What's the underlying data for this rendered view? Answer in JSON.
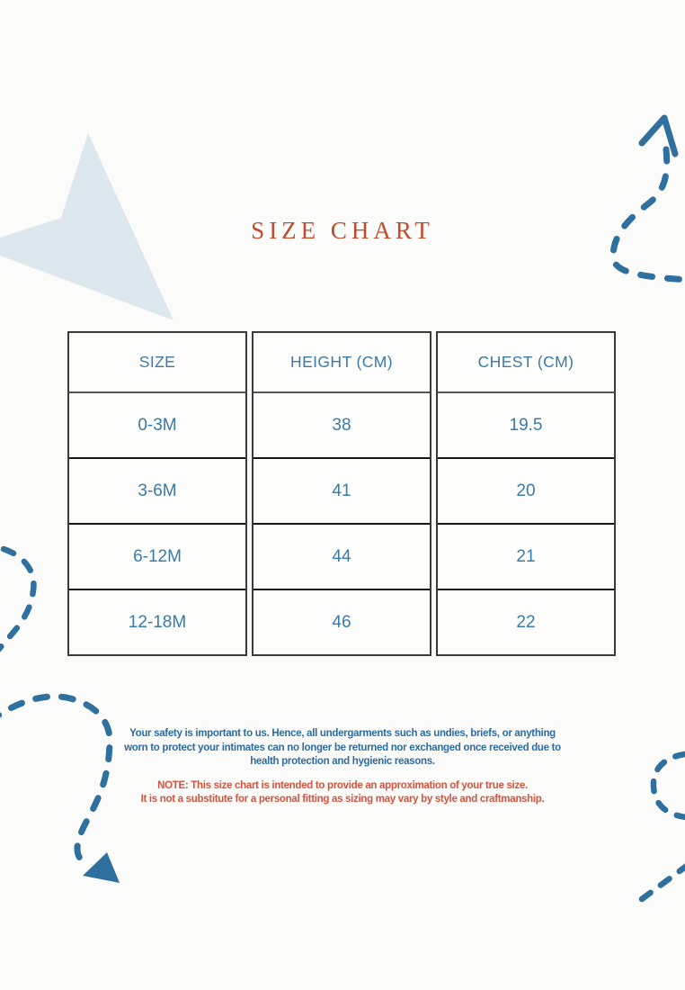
{
  "title": "SIZE CHART",
  "size_table": {
    "headers": [
      "SIZE",
      "HEIGHT (CM)",
      "CHEST (CM)"
    ],
    "column_keys": [
      "size",
      "height_cm",
      "chest_cm"
    ],
    "rows": [
      {
        "size": "0-3M",
        "height_cm": "38",
        "chest_cm": "19.5"
      },
      {
        "size": "3-6M",
        "height_cm": "41",
        "chest_cm": "20"
      },
      {
        "size": "6-12M",
        "height_cm": "44",
        "chest_cm": "21"
      },
      {
        "size": "12-18M",
        "height_cm": "46",
        "chest_cm": "22"
      }
    ]
  },
  "footer": {
    "safety_lines": [
      "Your safety is important to us. Hence, all undergarments such as undies, briefs, or anything",
      "worn to protect your intimates can no longer be returned nor exchanged once received due to",
      "health protection and hygienic reasons."
    ],
    "note_lines": [
      "NOTE: This size chart is intended to provide an approximation of your true size.",
      "It is not a substitute for a personal fitting as sizing may vary by style and craftmanship."
    ]
  },
  "colors": {
    "title_text": "#c24b2e",
    "table_text": "#3a7aa9",
    "safety_text": "#2d6ba3",
    "note_text": "#d6523f",
    "decoration_blue": "#2f709f",
    "decoration_light_triangle": "#dde7ee"
  }
}
